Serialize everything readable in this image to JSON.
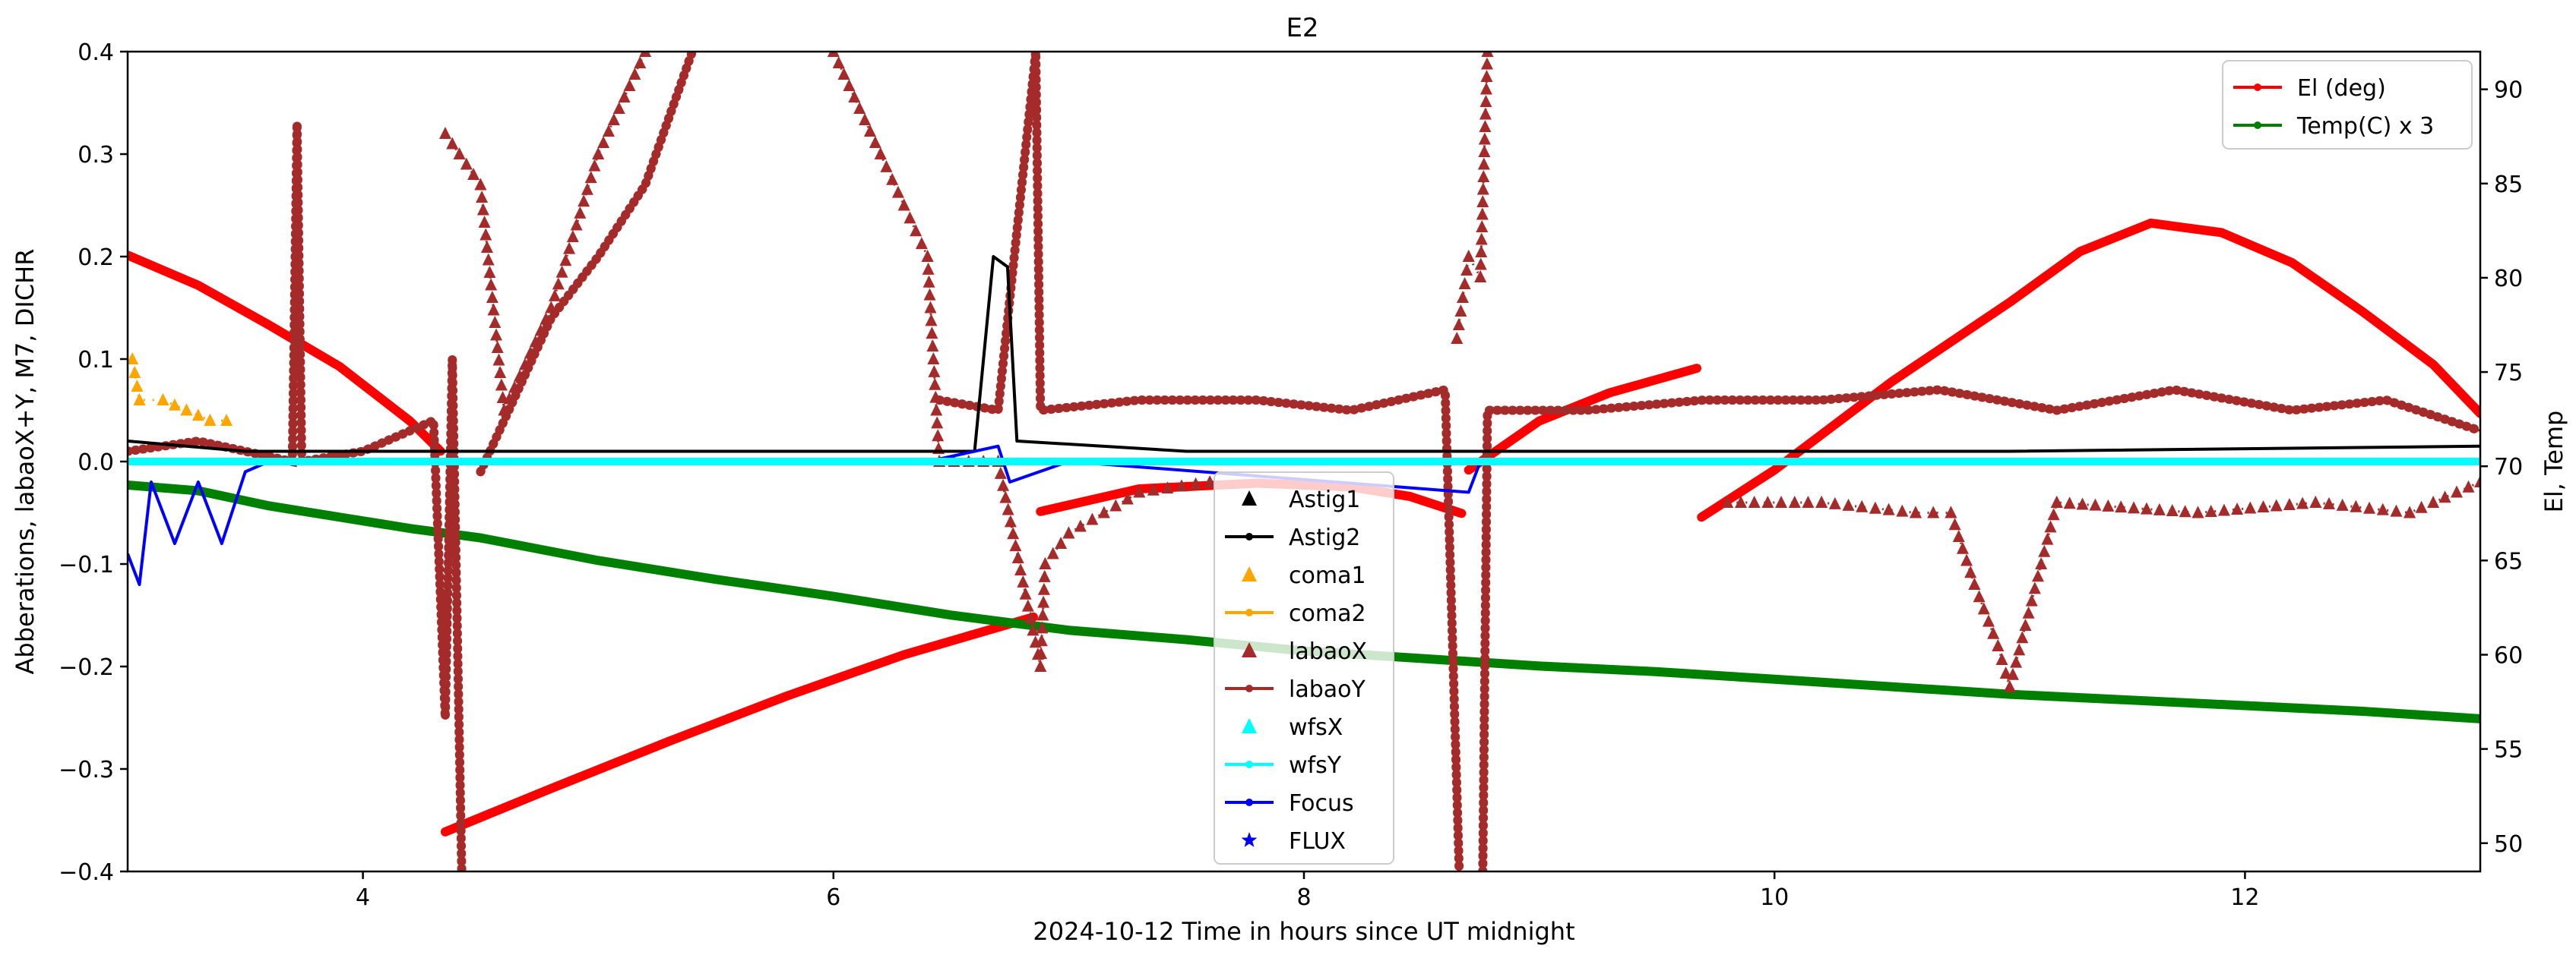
{
  "chart_data": {
    "type": "line",
    "title": "E2",
    "xlabel": "2024-10-12  Time in hours since UT midnight",
    "ylabel_left": "Abberations, labaoX+Y, M7, DICHR",
    "ylabel_right": "El, Temp",
    "xlim": [
      3.0,
      13.0
    ],
    "ylim_left": [
      -0.4,
      0.4
    ],
    "ylim_right": [
      48.5,
      92.0
    ],
    "x_ticks": [
      4,
      6,
      8,
      10,
      12
    ],
    "x_tick_labels": [
      "4",
      "6",
      "8",
      "10",
      "12"
    ],
    "y_left_ticks": [
      -0.4,
      -0.3,
      -0.2,
      -0.1,
      0.0,
      0.1,
      0.2,
      0.3,
      0.4
    ],
    "y_left_tick_labels": [
      "−0.4",
      "−0.3",
      "−0.2",
      "−0.1",
      "0.0",
      "0.1",
      "0.2",
      "0.3",
      "0.4"
    ],
    "y_right_ticks": [
      50,
      55,
      60,
      65,
      70,
      75,
      80,
      85,
      90
    ],
    "y_right_tick_labels": [
      "50",
      "55",
      "60",
      "65",
      "70",
      "75",
      "80",
      "85",
      "90"
    ],
    "legend_left": {
      "placement": "bottom-center",
      "entries": [
        {
          "label": "Astig1",
          "color": "#000000",
          "marker": "triangle",
          "line": false
        },
        {
          "label": "Astig2",
          "color": "#000000",
          "marker": "dot",
          "line": true
        },
        {
          "label": "coma1",
          "color": "#ffa500",
          "marker": "triangle",
          "line": false
        },
        {
          "label": "coma2",
          "color": "#ffa500",
          "marker": "dot",
          "line": true
        },
        {
          "label": "labaoX",
          "color": "#a52a2a",
          "marker": "triangle",
          "line": false
        },
        {
          "label": "labaoY",
          "color": "#a52a2a",
          "marker": "dot",
          "line": true
        },
        {
          "label": "wfsX",
          "color": "#00ffff",
          "marker": "triangle",
          "line": false
        },
        {
          "label": "wfsY",
          "color": "#00ffff",
          "marker": "dot",
          "line": true
        },
        {
          "label": "Focus",
          "color": "#0000ff",
          "marker": "dot",
          "line": true
        },
        {
          "label": "FLUX",
          "color": "#0000ff",
          "marker": "star",
          "line": false
        }
      ]
    },
    "legend_right": {
      "placement": "top-right",
      "entries": [
        {
          "label": "El (deg)",
          "color": "#ff0000",
          "marker": "dot",
          "line": true
        },
        {
          "label": "Temp(C) x 3",
          "color": "#008000",
          "marker": "dot",
          "line": true
        }
      ]
    },
    "series": [
      {
        "name": "El (deg)",
        "axis": "right",
        "color": "#ff0000",
        "style": "thick-line",
        "segments": [
          [
            [
              3.0,
              81.2
            ],
            [
              3.3,
              79.6
            ],
            [
              3.6,
              77.5
            ],
            [
              3.9,
              75.3
            ],
            [
              4.2,
              72.4
            ],
            [
              4.33,
              70.8
            ]
          ],
          [
            [
              4.35,
              50.6
            ],
            [
              4.8,
              52.9
            ],
            [
              5.3,
              55.4
            ],
            [
              5.8,
              57.8
            ],
            [
              6.3,
              60.0
            ],
            [
              6.85,
              62.0
            ]
          ],
          [
            [
              6.88,
              67.6
            ],
            [
              7.3,
              68.8
            ],
            [
              7.8,
              69.1
            ],
            [
              8.2,
              68.9
            ],
            [
              8.45,
              68.4
            ],
            [
              8.67,
              67.5
            ]
          ],
          [
            [
              8.7,
              69.8
            ],
            [
              9.0,
              72.4
            ],
            [
              9.3,
              73.9
            ],
            [
              9.67,
              75.2
            ]
          ],
          [
            [
              9.69,
              67.3
            ],
            [
              10.0,
              69.8
            ],
            [
              10.5,
              74.5
            ],
            [
              11.0,
              78.7
            ],
            [
              11.3,
              81.4
            ],
            [
              11.6,
              82.9
            ],
            [
              11.9,
              82.4
            ],
            [
              12.2,
              80.8
            ],
            [
              12.5,
              78.2
            ],
            [
              12.8,
              75.4
            ],
            [
              13.0,
              72.8
            ]
          ]
        ]
      },
      {
        "name": "Temp(C) x 3",
        "axis": "right",
        "color": "#008000",
        "style": "thick-line",
        "segments": [
          [
            [
              3.0,
              69.0
            ],
            [
              3.3,
              68.7
            ],
            [
              3.6,
              67.9
            ],
            [
              3.9,
              67.3
            ],
            [
              4.2,
              66.7
            ],
            [
              4.5,
              66.2
            ],
            [
              5.0,
              65.0
            ],
            [
              5.5,
              64.0
            ],
            [
              6.0,
              63.1
            ],
            [
              6.5,
              62.1
            ],
            [
              7.0,
              61.3
            ],
            [
              7.5,
              60.8
            ],
            [
              8.0,
              60.2
            ],
            [
              8.5,
              59.8
            ],
            [
              9.0,
              59.4
            ],
            [
              9.5,
              59.1
            ],
            [
              10.0,
              58.7
            ],
            [
              10.5,
              58.3
            ],
            [
              11.0,
              57.9
            ],
            [
              11.5,
              57.6
            ],
            [
              12.0,
              57.3
            ],
            [
              12.5,
              57.0
            ],
            [
              13.0,
              56.6
            ]
          ]
        ]
      },
      {
        "name": "labaoY",
        "axis": "left",
        "color": "#a52a2a",
        "style": "dotted-line",
        "segments": [
          [
            [
              3.0,
              0.01
            ],
            [
              3.3,
              0.02
            ],
            [
              3.5,
              0.01
            ],
            [
              3.7,
              0.0
            ],
            [
              3.72,
              0.33
            ],
            [
              3.74,
              0.0
            ],
            [
              4.0,
              0.01
            ],
            [
              4.3,
              0.04
            ],
            [
              4.35,
              -0.25
            ],
            [
              4.38,
              0.1
            ],
            [
              4.42,
              -0.4
            ]
          ],
          [
            [
              4.5,
              -0.01
            ],
            [
              4.8,
              0.14
            ],
            [
              5.0,
              0.2
            ],
            [
              5.2,
              0.27
            ],
            [
              5.4,
              0.4
            ]
          ],
          [
            [
              6.45,
              0.06
            ],
            [
              6.7,
              0.05
            ],
            [
              6.86,
              0.4
            ],
            [
              6.88,
              0.05
            ],
            [
              7.3,
              0.06
            ],
            [
              7.8,
              0.06
            ],
            [
              8.2,
              0.05
            ],
            [
              8.6,
              0.07
            ],
            [
              8.66,
              -0.4
            ]
          ],
          [
            [
              8.76,
              -0.4
            ],
            [
              8.78,
              0.05
            ],
            [
              9.2,
              0.05
            ],
            [
              9.7,
              0.06
            ],
            [
              10.2,
              0.06
            ],
            [
              10.7,
              0.07
            ],
            [
              11.2,
              0.05
            ],
            [
              11.7,
              0.07
            ],
            [
              12.2,
              0.05
            ],
            [
              12.6,
              0.06
            ],
            [
              13.0,
              0.03
            ]
          ]
        ]
      },
      {
        "name": "labaoX",
        "axis": "left",
        "color": "#a52a2a",
        "style": "triangles",
        "segments": [
          [
            [
              4.35,
              0.32
            ],
            [
              4.5,
              0.27
            ],
            [
              4.6,
              0.05
            ],
            [
              4.8,
              0.15
            ],
            [
              5.0,
              0.3
            ],
            [
              5.2,
              0.4
            ]
          ],
          [
            [
              6.0,
              0.4
            ],
            [
              6.2,
              0.3
            ],
            [
              6.3,
              0.25
            ],
            [
              6.4,
              0.2
            ],
            [
              6.45,
              0.0
            ],
            [
              6.7,
              0.0
            ],
            [
              6.88,
              -0.2
            ],
            [
              6.9,
              -0.1
            ],
            [
              7.0,
              -0.07
            ],
            [
              7.3,
              -0.03
            ],
            [
              7.6,
              -0.02
            ]
          ],
          [
            [
              8.65,
              0.12
            ],
            [
              8.7,
              0.2
            ],
            [
              8.75,
              0.18
            ],
            [
              8.78,
              0.4
            ]
          ],
          [
            [
              9.8,
              -0.04
            ],
            [
              10.2,
              -0.04
            ],
            [
              10.6,
              -0.05
            ],
            [
              10.75,
              -0.05
            ],
            [
              10.85,
              -0.12
            ],
            [
              10.95,
              -0.18
            ],
            [
              11.0,
              -0.22
            ],
            [
              11.2,
              -0.04
            ],
            [
              11.8,
              -0.05
            ],
            [
              12.3,
              -0.04
            ],
            [
              12.7,
              -0.05
            ],
            [
              13.0,
              -0.02
            ]
          ]
        ]
      },
      {
        "name": "Astig2",
        "axis": "left",
        "color": "#000000",
        "style": "line",
        "segments": [
          [
            [
              3.0,
              0.02
            ],
            [
              3.5,
              0.01
            ],
            [
              4.3,
              0.01
            ],
            [
              6.6,
              0.01
            ],
            [
              6.68,
              0.2
            ],
            [
              6.74,
              0.19
            ],
            [
              6.78,
              0.02
            ],
            [
              7.5,
              0.01
            ],
            [
              9.0,
              0.01
            ],
            [
              11.0,
              0.01
            ],
            [
              13.0,
              0.015
            ]
          ]
        ]
      },
      {
        "name": "Focus",
        "axis": "left",
        "color": "#0000ff",
        "style": "line",
        "segments": [
          [
            [
              3.0,
              -0.09
            ],
            [
              3.05,
              -0.12
            ],
            [
              3.1,
              -0.02
            ],
            [
              3.2,
              -0.08
            ],
            [
              3.3,
              -0.02
            ],
            [
              3.4,
              -0.08
            ],
            [
              3.5,
              -0.01
            ],
            [
              3.6,
              0.0
            ],
            [
              4.3,
              0.0
            ],
            [
              6.4,
              0.0
            ],
            [
              6.7,
              0.015
            ],
            [
              6.75,
              -0.02
            ],
            [
              7.0,
              0.0
            ],
            [
              8.7,
              -0.03
            ],
            [
              8.75,
              0.0
            ],
            [
              13.0,
              0.0
            ]
          ]
        ]
      },
      {
        "name": "wfsY",
        "axis": "left",
        "color": "#00ffff",
        "style": "line",
        "segments": [
          [
            [
              3.0,
              0.0
            ],
            [
              13.0,
              0.0
            ]
          ]
        ]
      },
      {
        "name": "coma1",
        "axis": "left",
        "color": "#ffa500",
        "style": "triangles",
        "segments": [
          [
            [
              3.02,
              0.1
            ],
            [
              3.05,
              0.06
            ],
            [
              3.15,
              0.06
            ],
            [
              3.25,
              0.05
            ],
            [
              3.35,
              0.04
            ],
            [
              3.42,
              0.04
            ]
          ]
        ]
      }
    ]
  }
}
